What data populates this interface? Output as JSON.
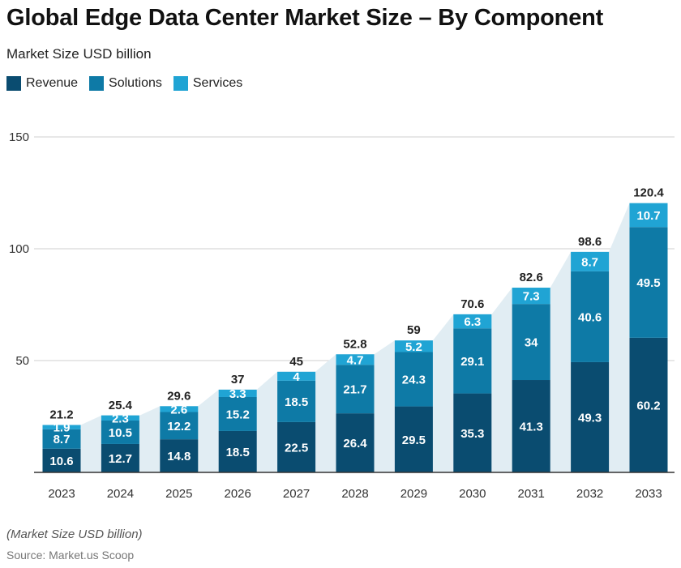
{
  "title": "Global Edge Data Center Market Size – By Component",
  "subtitle": "Market Size USD billion",
  "note": "(Market Size USD billion)",
  "source": "Source: Market.us Scoop",
  "colors": {
    "revenue": "#0a4c70",
    "solutions": "#0e7aa6",
    "services": "#20a4d4",
    "area": "#e1edf3",
    "grid": "#cfcfcf",
    "axis": "#333333"
  },
  "legend": [
    {
      "label": "Revenue",
      "color": "#0a4c70"
    },
    {
      "label": "Solutions",
      "color": "#0e7aa6"
    },
    {
      "label": "Services",
      "color": "#20a4d4"
    }
  ],
  "chart_data": {
    "type": "bar",
    "stacked": true,
    "title": "Global Edge Data Center Market Size – By Component",
    "ylabel": "Market Size USD billion",
    "xlabel": "",
    "ylim": [
      0,
      150
    ],
    "yticks": [
      50,
      100,
      150
    ],
    "grid": true,
    "legend_position": "top-left",
    "categories": [
      "2023",
      "2024",
      "2025",
      "2026",
      "2027",
      "2028",
      "2029",
      "2030",
      "2031",
      "2032",
      "2033"
    ],
    "series": [
      {
        "name": "Revenue",
        "values": [
          10.6,
          12.7,
          14.8,
          18.5,
          22.5,
          26.4,
          29.5,
          35.3,
          41.3,
          49.3,
          60.2
        ]
      },
      {
        "name": "Solutions",
        "values": [
          8.7,
          10.5,
          12.2,
          15.2,
          18.5,
          21.7,
          24.3,
          29.1,
          34,
          40.6,
          49.5
        ]
      },
      {
        "name": "Services",
        "values": [
          1.9,
          2.3,
          2.6,
          3.3,
          4,
          4.7,
          5.2,
          6.3,
          7.3,
          8.7,
          10.7
        ]
      }
    ],
    "totals": [
      21.2,
      25.4,
      29.6,
      37,
      45,
      52.8,
      59,
      70.6,
      82.6,
      98.6,
      120.4
    ]
  }
}
